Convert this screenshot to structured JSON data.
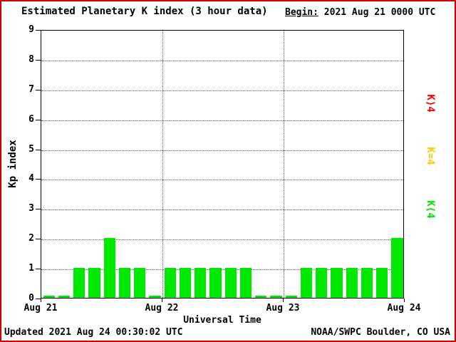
{
  "title": "Estimated Planetary K index (3 hour data)",
  "begin_label": "Begin:",
  "begin_value": "2021 Aug 21 0000 UTC",
  "footer": {
    "updated": "Updated 2021 Aug 24 00:30:02 UTC",
    "source": "NOAA/SWPC Boulder, CO USA"
  },
  "colors": {
    "frame": "#D40000",
    "background": "#FFFFFF",
    "k_lt4": "#00E800",
    "k_eq4": "#FFC800",
    "k_gt4": "#FF0000"
  },
  "chart_data": {
    "type": "bar",
    "title": "Estimated Planetary K index (3 hour data)",
    "xlabel": "Universal Time",
    "ylabel": "Kp index",
    "ylim": [
      0,
      9
    ],
    "yticks": [
      0,
      1,
      2,
      3,
      4,
      5,
      6,
      7,
      8,
      9
    ],
    "xticks": [
      "Aug 21",
      "Aug 22",
      "Aug 23",
      "Aug 24"
    ],
    "bin_hours": 3,
    "grid": "dotted",
    "values": [
      0,
      0,
      1,
      1,
      2,
      1,
      1,
      0,
      1,
      1,
      1,
      1,
      1,
      1,
      0,
      0,
      0,
      1,
      1,
      1,
      1,
      1,
      1,
      2
    ],
    "legend_position": "right",
    "legend": [
      {
        "label": "K⟩4",
        "color": "#FF0000"
      },
      {
        "label": "K=4",
        "color": "#FFC800"
      },
      {
        "label": "K⟨4",
        "color": "#00E800"
      }
    ]
  }
}
